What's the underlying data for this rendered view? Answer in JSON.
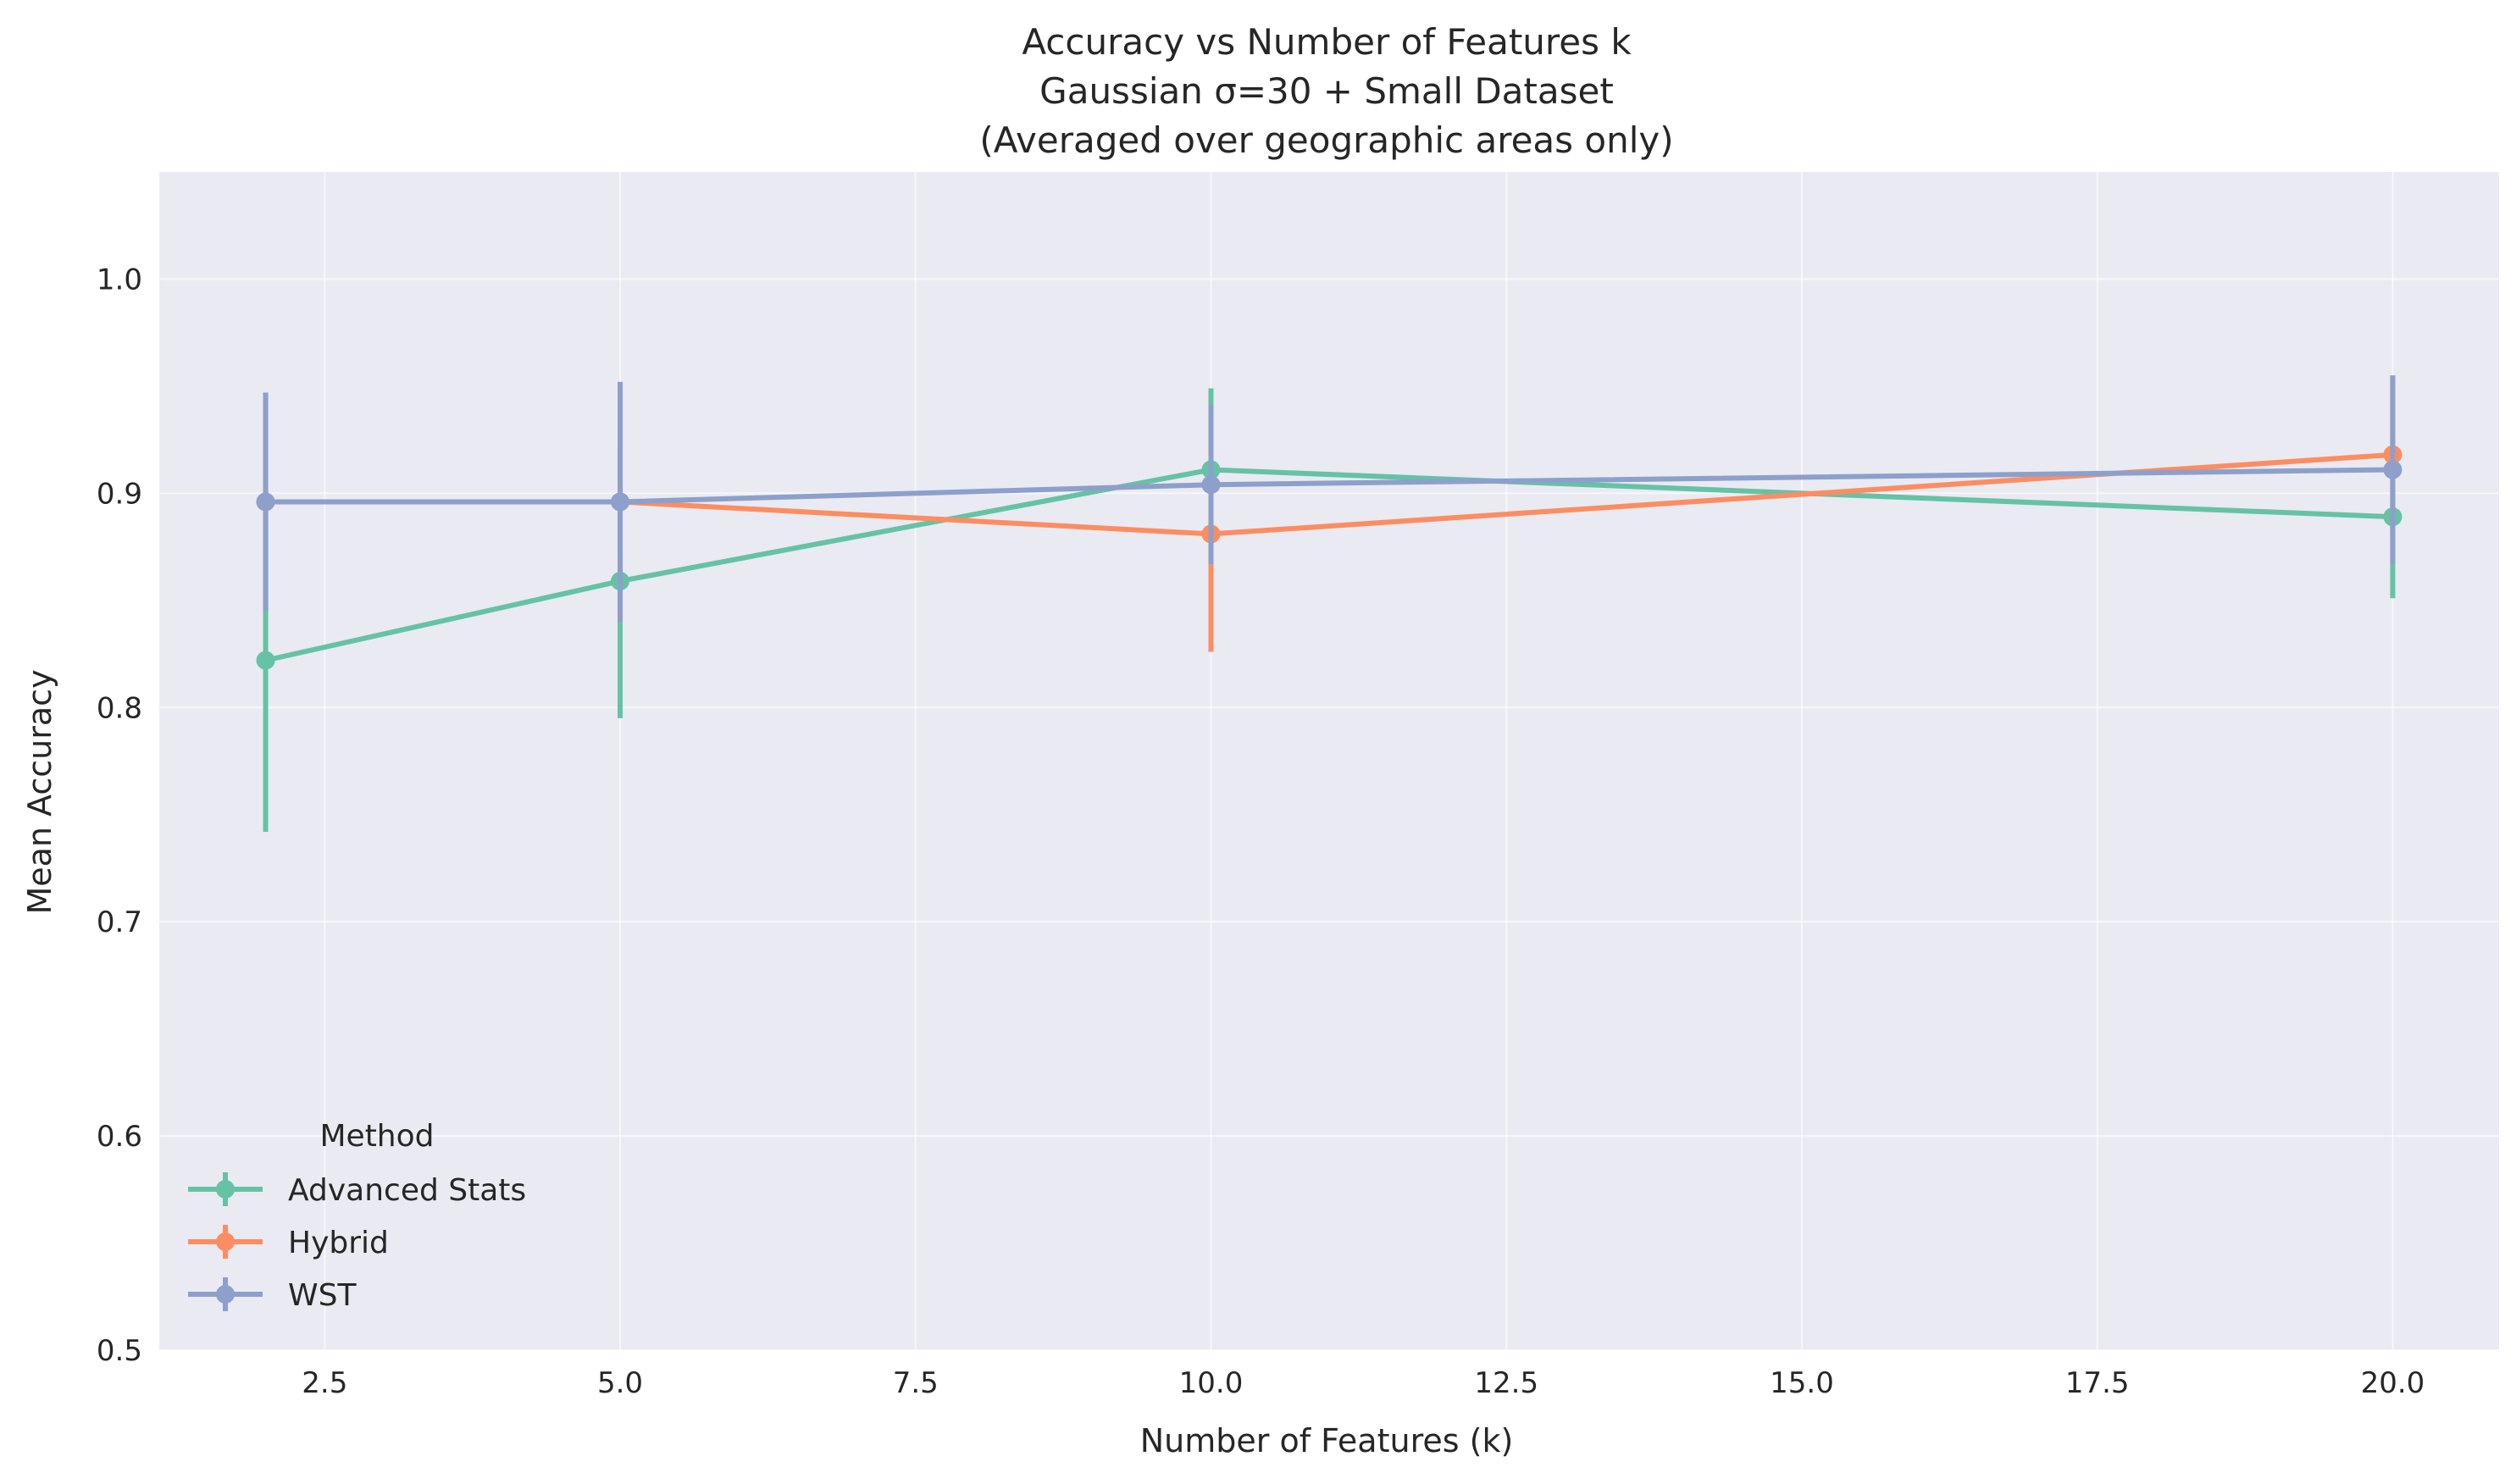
{
  "chart_data": {
    "type": "line",
    "title_lines": [
      "Accuracy vs Number of Features k",
      "Gaussian σ=30 + Small Dataset",
      "(Averaged over geographic areas only)"
    ],
    "xlabel": "Number of Features (k)",
    "ylabel": "Mean Accuracy",
    "xlim": [
      1.1,
      20.9
    ],
    "ylim": [
      0.5,
      1.05
    ],
    "x_ticks": [
      2.5,
      5.0,
      7.5,
      10.0,
      12.5,
      15.0,
      17.5,
      20.0
    ],
    "x_tick_labels": [
      "2.5",
      "5.0",
      "7.5",
      "10.0",
      "12.5",
      "15.0",
      "17.5",
      "20.0"
    ],
    "y_ticks": [
      0.5,
      0.6,
      0.7,
      0.8,
      0.9,
      1.0
    ],
    "y_tick_labels": [
      "0.5",
      "0.6",
      "0.7",
      "0.8",
      "0.9",
      "1.0"
    ],
    "grid": true,
    "legend": {
      "title": "Method",
      "placement": "lower-left"
    },
    "x": [
      2,
      5,
      10,
      20
    ],
    "series": [
      {
        "name": "Advanced Stats",
        "color": "#66c2a5",
        "values": [
          0.822,
          0.859,
          0.911,
          0.889
        ],
        "errors": [
          0.08,
          0.064,
          0.038,
          0.038
        ]
      },
      {
        "name": "Hybrid",
        "color": "#fc8d62",
        "values": [
          0.896,
          0.896,
          0.881,
          0.918
        ],
        "errors": [
          0.051,
          0.056,
          0.055,
          0.037
        ]
      },
      {
        "name": "WST",
        "color": "#8da0cb",
        "values": [
          0.896,
          0.896,
          0.904,
          0.911
        ],
        "errors": [
          0.051,
          0.056,
          0.037,
          0.044
        ]
      }
    ]
  }
}
